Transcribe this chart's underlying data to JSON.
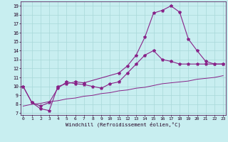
{
  "bg_color": "#c8eef0",
  "grid_color": "#a8d8d8",
  "line_color": "#882288",
  "xlim_min": -0.3,
  "xlim_max": 23.3,
  "ylim_min": 6.8,
  "ylim_max": 19.5,
  "xticks": [
    0,
    1,
    2,
    3,
    4,
    5,
    6,
    7,
    8,
    9,
    10,
    11,
    12,
    13,
    14,
    15,
    16,
    17,
    18,
    19,
    20,
    21,
    22,
    23
  ],
  "yticks": [
    7,
    8,
    9,
    10,
    11,
    12,
    13,
    14,
    15,
    16,
    17,
    18,
    19
  ],
  "line1_x": [
    0,
    1,
    2,
    3,
    4,
    5,
    6,
    7,
    11,
    12,
    13,
    14,
    15,
    16,
    17,
    18,
    19,
    20,
    21,
    22,
    23
  ],
  "line1_y": [
    10,
    8.2,
    7.5,
    7.3,
    10.0,
    10.3,
    10.5,
    10.4,
    11.5,
    12.3,
    13.5,
    15.5,
    18.2,
    18.5,
    19.0,
    18.3,
    15.3,
    14.0,
    12.8,
    12.5,
    12.5
  ],
  "line2_x": [
    0,
    1,
    2,
    3,
    4,
    5,
    6,
    7,
    8,
    9,
    10,
    11,
    12,
    13,
    14,
    15,
    16,
    17,
    18,
    19,
    20,
    21,
    22,
    23
  ],
  "line2_y": [
    10,
    8.2,
    7.8,
    8.2,
    9.8,
    10.5,
    10.3,
    10.2,
    10.0,
    9.8,
    10.3,
    10.5,
    11.5,
    12.5,
    13.5,
    14.0,
    13.0,
    12.8,
    12.5,
    12.5,
    12.5,
    12.5,
    12.5,
    12.5
  ],
  "line3_x": [
    0,
    1,
    2,
    3,
    4,
    5,
    6,
    7,
    8,
    9,
    10,
    11,
    12,
    13,
    14,
    15,
    16,
    17,
    18,
    19,
    20,
    21,
    22,
    23
  ],
  "line3_y": [
    7.8,
    8.0,
    8.1,
    8.3,
    8.4,
    8.6,
    8.7,
    8.9,
    9.0,
    9.2,
    9.3,
    9.5,
    9.6,
    9.8,
    9.9,
    10.1,
    10.3,
    10.4,
    10.5,
    10.6,
    10.8,
    10.9,
    11.0,
    11.2
  ],
  "xlabel": "Windchill (Refroidissement éolien,°C)"
}
